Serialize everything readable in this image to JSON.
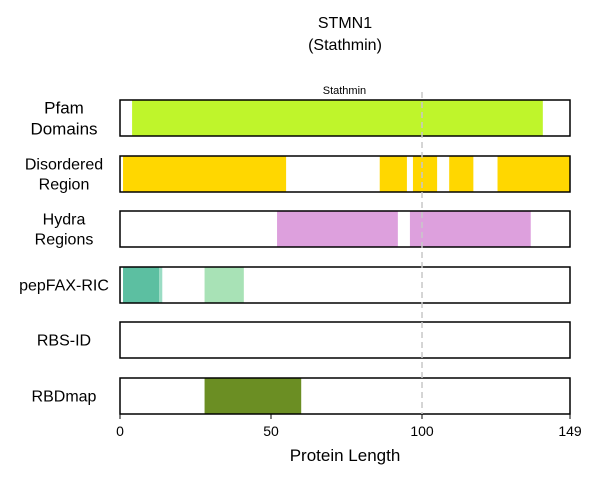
{
  "chart_data": {
    "type": "bar",
    "title": "STMN1",
    "subtitle": "(Stathmin)",
    "xlabel": "Protein Length",
    "xlim": [
      0,
      149
    ],
    "xticks": [
      0,
      50,
      100,
      149
    ],
    "marker_line": 100,
    "tracks": [
      {
        "name": "Pfam Domains",
        "label_lines": [
          "Pfam",
          "Domains"
        ],
        "segments": [
          {
            "start": 4,
            "end": 140,
            "color": "#bff52b",
            "label": "Stathmin"
          }
        ]
      },
      {
        "name": "Disordered Region",
        "label_lines": [
          "Disordered",
          "Region"
        ],
        "segments": [
          {
            "start": 1,
            "end": 55,
            "color": "#ffd700"
          },
          {
            "start": 86,
            "end": 95,
            "color": "#ffd700"
          },
          {
            "start": 97,
            "end": 105,
            "color": "#ffd700"
          },
          {
            "start": 109,
            "end": 117,
            "color": "#ffd700"
          },
          {
            "start": 125,
            "end": 149,
            "color": "#ffd700"
          }
        ]
      },
      {
        "name": "Hydra Regions",
        "label_lines": [
          "Hydra",
          "Regions"
        ],
        "segments": [
          {
            "start": 52,
            "end": 92,
            "color": "#dda0dd"
          },
          {
            "start": 96,
            "end": 136,
            "color": "#dda0dd"
          }
        ]
      },
      {
        "name": "pepFAX-RIC",
        "label_lines": [
          "pepFAX-RIC"
        ],
        "segments": [
          {
            "start": 1,
            "end": 13,
            "color": "#5cbfa1"
          },
          {
            "start": 13,
            "end": 14,
            "color": "#9adcc4"
          },
          {
            "start": 28,
            "end": 41,
            "color": "#a8e2b6"
          }
        ]
      },
      {
        "name": "RBS-ID",
        "label_lines": [
          "RBS-ID"
        ],
        "segments": []
      },
      {
        "name": "RBDmap",
        "label_lines": [
          "RBDmap"
        ],
        "segments": [
          {
            "start": 28,
            "end": 60,
            "color": "#6b8e23"
          }
        ]
      }
    ]
  }
}
